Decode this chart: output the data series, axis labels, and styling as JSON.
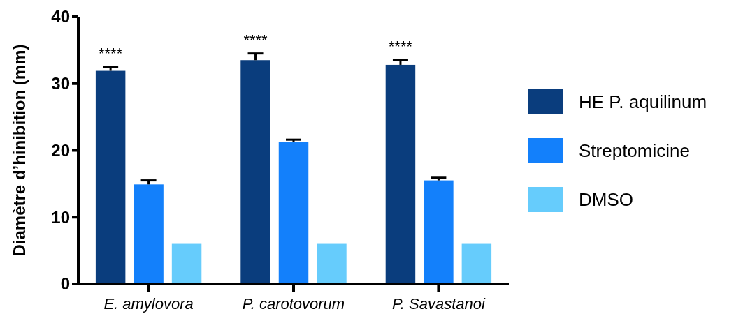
{
  "chart_data": {
    "type": "bar",
    "ylabel": "Diamètre d’hinibition (mm)",
    "categories": [
      "E. amylovora",
      "P. carotovorum",
      "P. Savastanoi"
    ],
    "ylim": [
      0,
      40
    ],
    "yticks": [
      0,
      10,
      20,
      30,
      40
    ],
    "grid": false,
    "legend": "right",
    "series": [
      {
        "name": "HE P. aquilinum",
        "color": "#0a3d7d",
        "values": [
          31.9,
          33.5,
          32.8
        ],
        "errors": [
          [
            31.9,
            32.5
          ],
          [
            33.5,
            34.5
          ],
          [
            32.8,
            33.5
          ]
        ]
      },
      {
        "name": "Streptomicine",
        "color": "#1380fb",
        "values": [
          14.9,
          21.2,
          15.5
        ],
        "errors": [
          [
            14.9,
            15.5
          ],
          [
            21.2,
            21.6
          ],
          [
            15.5,
            15.9
          ]
        ]
      },
      {
        "name": "DMSO",
        "color": "#66ccfc",
        "values": [
          6,
          6,
          6
        ]
      }
    ],
    "annotations": [
      "****",
      "****",
      "****"
    ]
  }
}
